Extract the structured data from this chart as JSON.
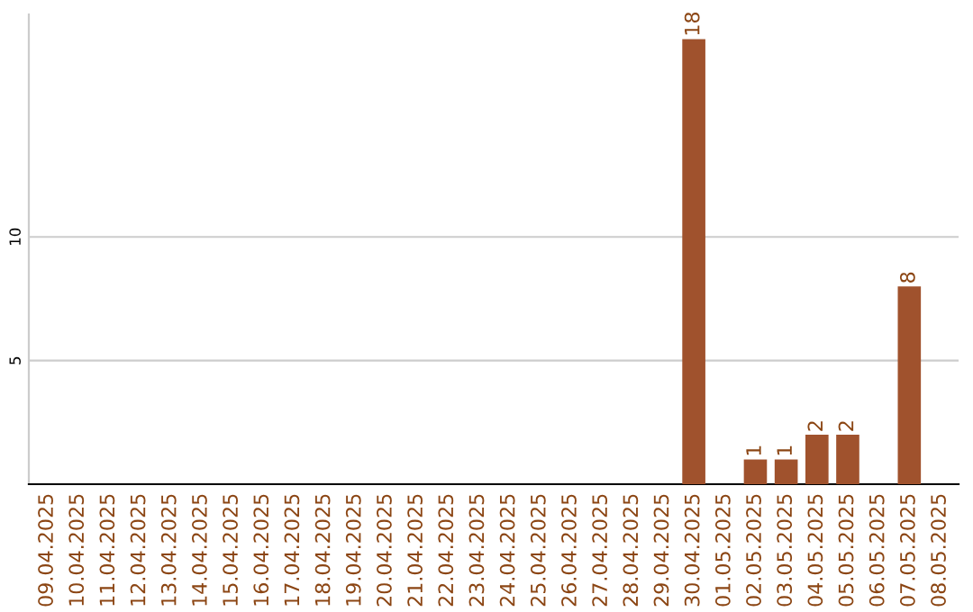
{
  "chart_data": {
    "type": "bar",
    "categories": [
      "09.04.2025",
      "10.04.2025",
      "11.04.2025",
      "12.04.2025",
      "13.04.2025",
      "14.04.2025",
      "15.04.2025",
      "16.04.2025",
      "17.04.2025",
      "18.04.2025",
      "19.04.2025",
      "20.04.2025",
      "21.04.2025",
      "22.04.2025",
      "23.04.2025",
      "24.04.2025",
      "25.04.2025",
      "26.04.2025",
      "27.04.2025",
      "28.04.2025",
      "29.04.2025",
      "30.04.2025",
      "01.05.2025",
      "02.05.2025",
      "03.05.2025",
      "04.05.2025",
      "05.05.2025",
      "06.05.2025",
      "07.05.2025",
      "08.05.2025"
    ],
    "values": [
      0,
      0,
      0,
      0,
      0,
      0,
      0,
      0,
      0,
      0,
      0,
      0,
      0,
      0,
      0,
      0,
      0,
      0,
      0,
      0,
      0,
      18,
      0,
      1,
      1,
      2,
      2,
      0,
      8,
      0
    ],
    "value_labels": [
      null,
      null,
      null,
      null,
      null,
      null,
      null,
      null,
      null,
      null,
      null,
      null,
      null,
      null,
      null,
      null,
      null,
      null,
      null,
      null,
      null,
      "18",
      null,
      "1",
      "1",
      "2",
      "2",
      null,
      "8",
      null
    ],
    "color": "#a0522d",
    "ylim": [
      0,
      19
    ],
    "yticks": [
      5,
      10
    ],
    "grid": "y"
  }
}
